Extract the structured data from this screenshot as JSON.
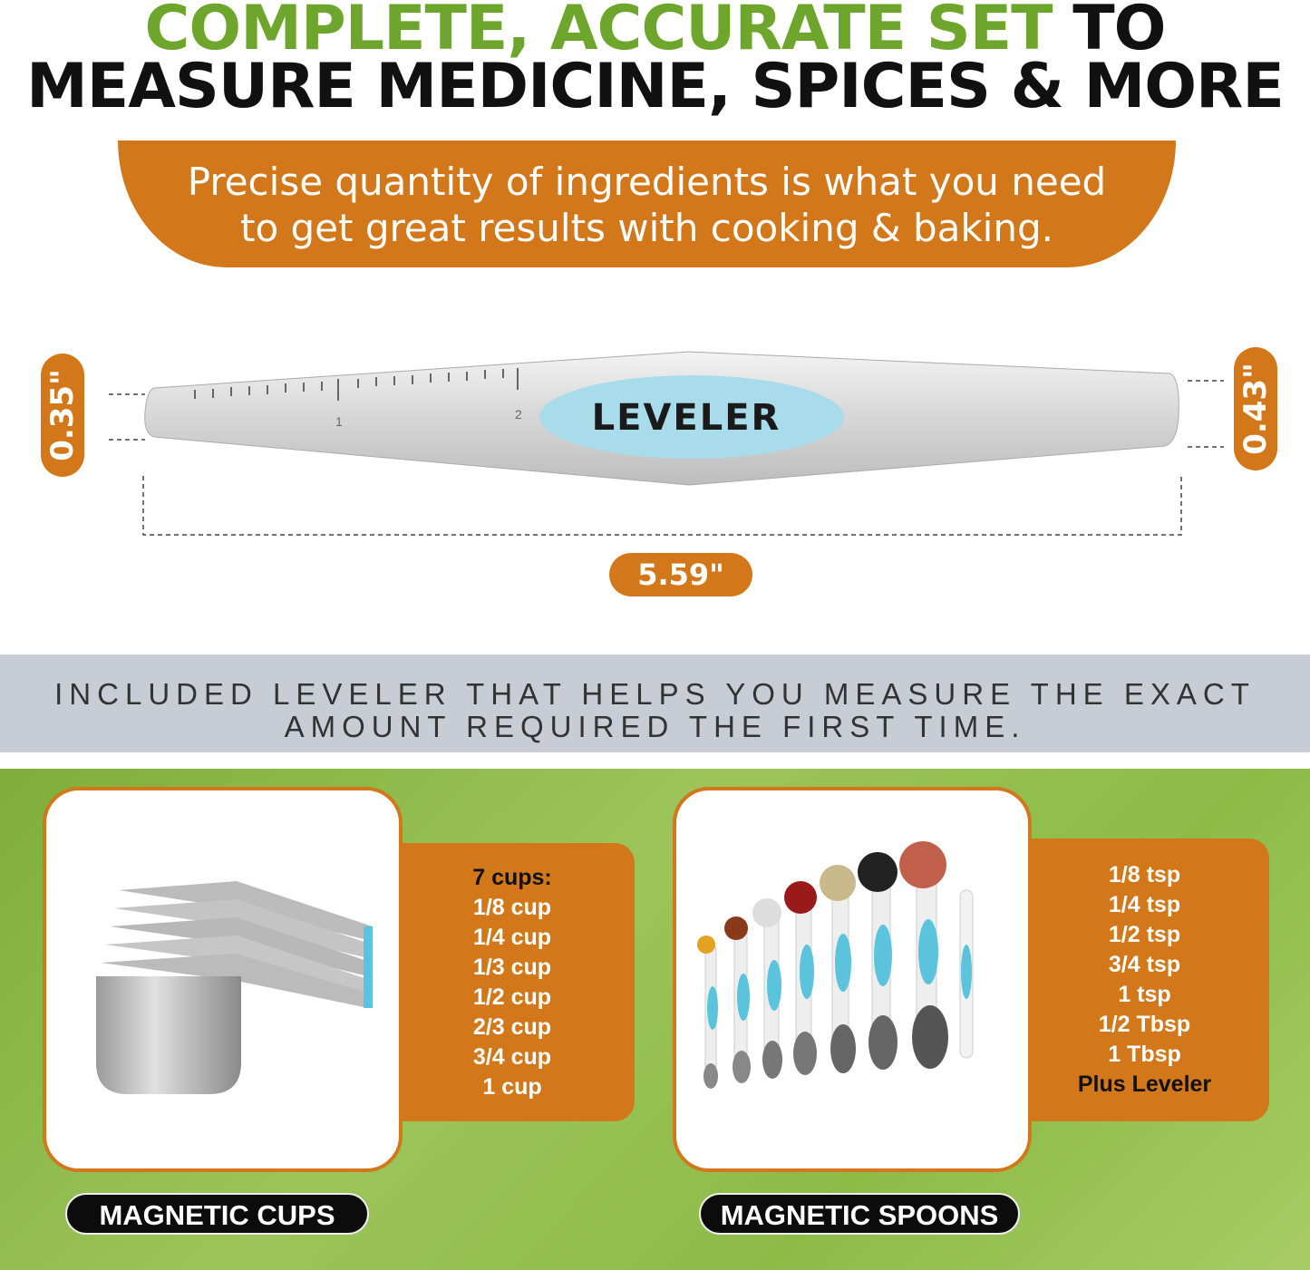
{
  "headline": {
    "line1_green": "COMPLETE, ACCURATE SET",
    "line1_black": "TO",
    "line2": "MEASURE MEDICINE, SPICES & MORE"
  },
  "banner": {
    "line1": "Precise quantity of ingredients is what you need",
    "line2": "to get great results with cooking & baking."
  },
  "leveler": {
    "label": "LEVELER",
    "ruler_marks": [
      "1",
      "2"
    ],
    "left_height": "0.35\"",
    "right_height": "0.43\"",
    "length": "5.59\""
  },
  "band": {
    "line1": "INCLUDED LEVELER THAT HELPS YOU MEASURE THE EXACT",
    "line2": "AMOUNT REQUIRED THE FIRST TIME."
  },
  "cups": {
    "heading": "7 cups:",
    "items": [
      "1/8 cup",
      "1/4 cup",
      "1/3 cup",
      "1/2 cup",
      "2/3 cup",
      "3/4 cup",
      "1 cup"
    ],
    "label": "MAGNETIC CUPS"
  },
  "spoons": {
    "items": [
      "1/8 tsp",
      "1/4 tsp",
      "1/2 tsp",
      "3/4 tsp",
      "1 tsp",
      "1/2 Tbsp",
      "1 Tbsp"
    ],
    "extra": "Plus Leveler",
    "label": "MAGNETIC SPOONS"
  },
  "colors": {
    "green": "#6ea52c",
    "orange": "#d2781a",
    "band": "#c8ccd4",
    "leveler_blue": "#a8dcea"
  }
}
